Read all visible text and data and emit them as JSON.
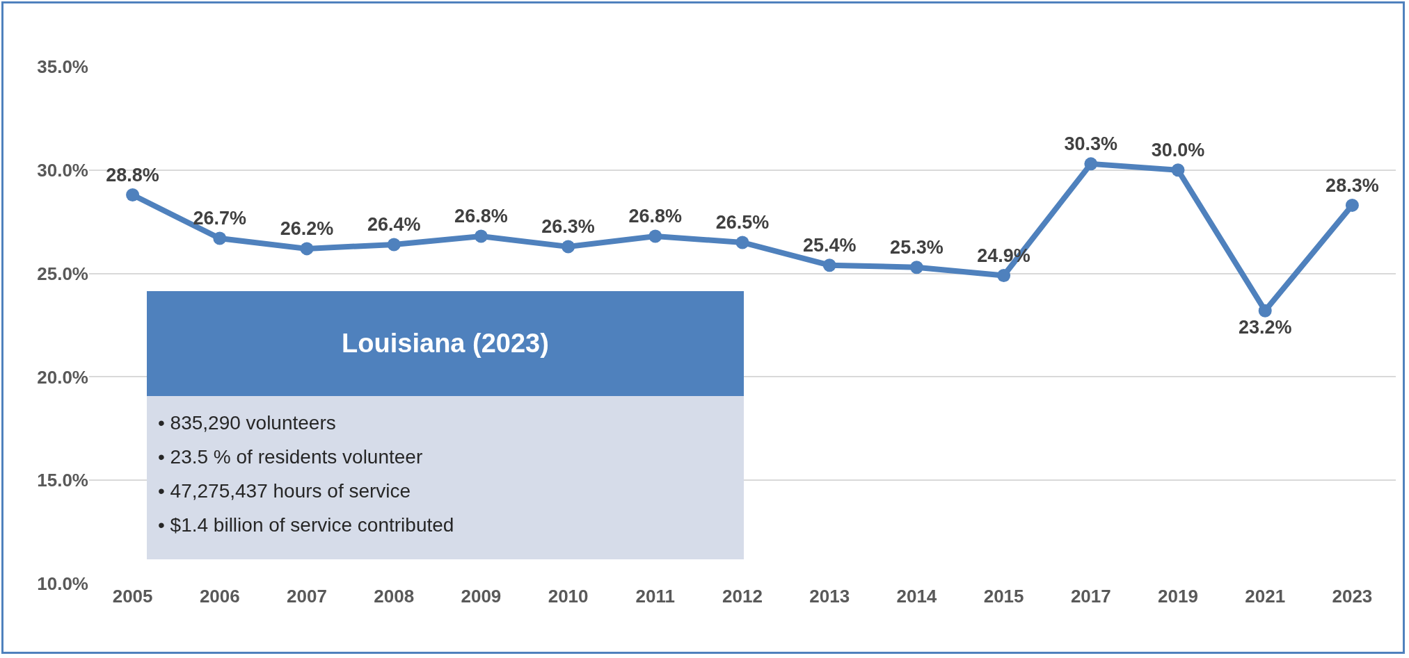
{
  "chart_data": {
    "type": "line",
    "categories": [
      "2005",
      "2006",
      "2007",
      "2008",
      "2009",
      "2010",
      "2011",
      "2012",
      "2013",
      "2014",
      "2015",
      "2017",
      "2019",
      "2021",
      "2023"
    ],
    "series": [
      {
        "color": "#4f81bd",
        "values": [
          28.8,
          26.7,
          26.2,
          26.4,
          26.8,
          26.3,
          26.8,
          26.5,
          25.4,
          25.3,
          24.9,
          30.3,
          30.0,
          23.2,
          28.3
        ],
        "value_labels": [
          "28.8%",
          "26.7%",
          "26.2%",
          "26.4%",
          "26.8%",
          "26.3%",
          "26.8%",
          "26.5%",
          "25.4%",
          "25.3%",
          "24.9%",
          "30.3%",
          "30.0%",
          "23.2%",
          "28.3%"
        ]
      }
    ],
    "ylim": [
      10,
      35
    ],
    "yticks": [
      {
        "value": 10,
        "label": "10.0%"
      },
      {
        "value": 15,
        "label": "15.0%"
      },
      {
        "value": 20,
        "label": "20.0%"
      },
      {
        "value": 25,
        "label": "25.0%"
      },
      {
        "value": 30,
        "label": "30.0%"
      },
      {
        "value": 35,
        "label": "35.0%"
      }
    ],
    "grid": "y",
    "marker": "circle",
    "line_style": "solid",
    "annotations": [
      "Louisiana (2023)",
      "• 835,290 volunteers",
      "• 23.5 % of residents volunteer",
      "• 47,275,437 hours of service",
      "• $1.4 billion of service contributed"
    ]
  }
}
